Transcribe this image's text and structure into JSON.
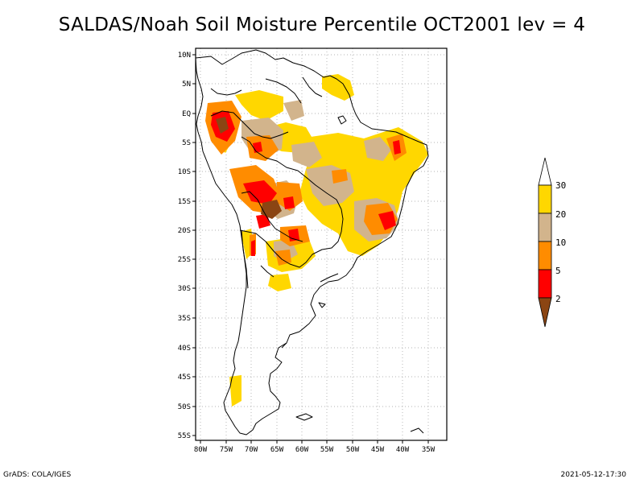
{
  "title": "SALDAS/Noah Soil Moisture Percentile OCT2001 lev = 4",
  "map": {
    "lat_ticks": [
      "10N",
      "5N",
      "EQ",
      "5S",
      "10S",
      "15S",
      "20S",
      "25S",
      "30S",
      "35S",
      "40S",
      "45S",
      "50S",
      "55S"
    ],
    "lon_ticks": [
      "80W",
      "75W",
      "70W",
      "65W",
      "60W",
      "55W",
      "50W",
      "45W",
      "40W",
      "35W"
    ]
  },
  "legend": {
    "labels": [
      "30",
      "20",
      "10",
      "5",
      "2"
    ],
    "colors": {
      "above_30": "#ffffff",
      "c20_30": "#ffd700",
      "c10_20": "#d2b48c",
      "c5_10": "#ff8c00",
      "c2_5": "#ff0000",
      "below_2": "#8b4513"
    }
  },
  "footer": {
    "left": "GrADS: COLA/IGES",
    "right": "2021-05-12-17:30"
  }
}
